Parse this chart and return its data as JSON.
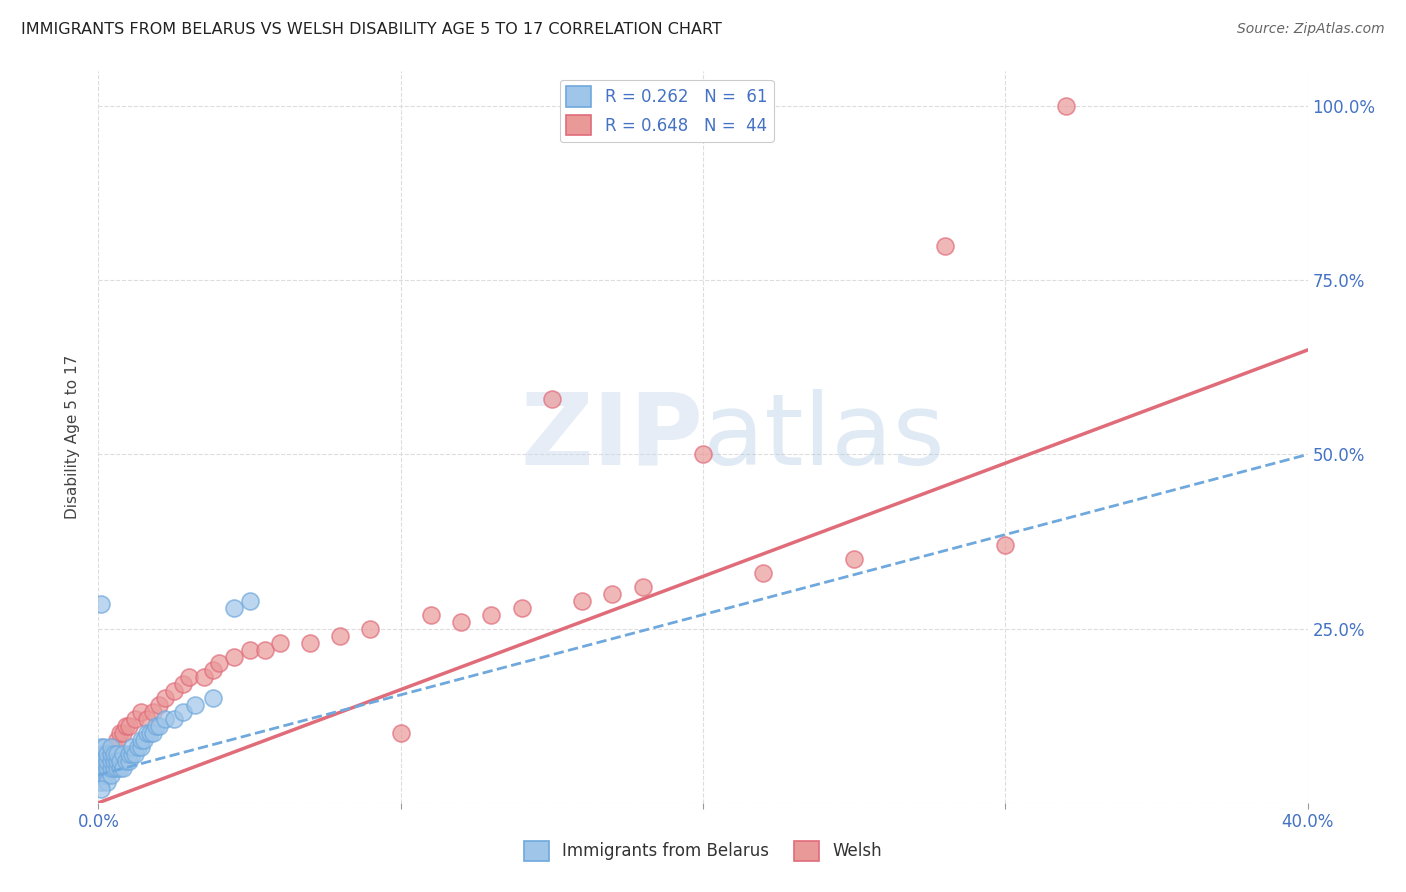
{
  "title": "IMMIGRANTS FROM BELARUS VS WELSH DISABILITY AGE 5 TO 17 CORRELATION CHART",
  "source": "Source: ZipAtlas.com",
  "ylabel": "Disability Age 5 to 17",
  "xlim": [
    0.0,
    0.4
  ],
  "ylim": [
    0.0,
    1.05
  ],
  "legend_R1": "R = 0.262",
  "legend_N1": "N =  61",
  "legend_R2": "R = 0.648",
  "legend_N2": "N =  44",
  "legend_label1": "Immigrants from Belarus",
  "legend_label2": "Welsh",
  "color_blue": "#9fc5e8",
  "color_blue_edge": "#6fa8dc",
  "color_blue_line": "#6fa8dc",
  "color_pink": "#ea9999",
  "color_pink_edge": "#e06c7a",
  "color_pink_line": "#e06c7a",
  "watermark": "ZIPatlas",
  "blue_scatter_x": [
    0.0005,
    0.001,
    0.001,
    0.001,
    0.001,
    0.001,
    0.001,
    0.001,
    0.001,
    0.002,
    0.002,
    0.002,
    0.002,
    0.002,
    0.002,
    0.002,
    0.002,
    0.003,
    0.003,
    0.003,
    0.003,
    0.003,
    0.004,
    0.004,
    0.004,
    0.004,
    0.004,
    0.005,
    0.005,
    0.005,
    0.006,
    0.006,
    0.006,
    0.007,
    0.007,
    0.008,
    0.008,
    0.009,
    0.01,
    0.01,
    0.011,
    0.011,
    0.012,
    0.013,
    0.014,
    0.014,
    0.015,
    0.016,
    0.017,
    0.018,
    0.019,
    0.02,
    0.022,
    0.025,
    0.028,
    0.032,
    0.038,
    0.045,
    0.05,
    0.001,
    0.001
  ],
  "blue_scatter_y": [
    0.04,
    0.05,
    0.06,
    0.07,
    0.08,
    0.04,
    0.05,
    0.06,
    0.03,
    0.04,
    0.05,
    0.06,
    0.07,
    0.08,
    0.04,
    0.05,
    0.06,
    0.04,
    0.05,
    0.06,
    0.07,
    0.03,
    0.04,
    0.05,
    0.06,
    0.07,
    0.08,
    0.05,
    0.06,
    0.07,
    0.05,
    0.06,
    0.07,
    0.05,
    0.06,
    0.05,
    0.07,
    0.06,
    0.06,
    0.07,
    0.07,
    0.08,
    0.07,
    0.08,
    0.08,
    0.09,
    0.09,
    0.1,
    0.1,
    0.1,
    0.11,
    0.11,
    0.12,
    0.12,
    0.13,
    0.14,
    0.15,
    0.28,
    0.29,
    0.285,
    0.02
  ],
  "pink_scatter_x": [
    0.001,
    0.002,
    0.003,
    0.004,
    0.005,
    0.006,
    0.007,
    0.008,
    0.009,
    0.01,
    0.012,
    0.014,
    0.016,
    0.018,
    0.02,
    0.022,
    0.025,
    0.028,
    0.03,
    0.035,
    0.038,
    0.04,
    0.045,
    0.05,
    0.055,
    0.06,
    0.07,
    0.08,
    0.09,
    0.1,
    0.11,
    0.12,
    0.13,
    0.14,
    0.15,
    0.16,
    0.17,
    0.18,
    0.2,
    0.22,
    0.25,
    0.28,
    0.3,
    0.32
  ],
  "pink_scatter_y": [
    0.04,
    0.06,
    0.05,
    0.07,
    0.08,
    0.09,
    0.1,
    0.1,
    0.11,
    0.11,
    0.12,
    0.13,
    0.12,
    0.13,
    0.14,
    0.15,
    0.16,
    0.17,
    0.18,
    0.18,
    0.19,
    0.2,
    0.21,
    0.22,
    0.22,
    0.23,
    0.23,
    0.24,
    0.25,
    0.1,
    0.27,
    0.26,
    0.27,
    0.28,
    0.58,
    0.29,
    0.3,
    0.31,
    0.5,
    0.33,
    0.35,
    0.8,
    0.37,
    1.0
  ],
  "blue_line_x": [
    0.0,
    0.4
  ],
  "blue_line_y": [
    0.04,
    0.5
  ],
  "pink_line_x": [
    0.0,
    0.4
  ],
  "pink_line_y": [
    0.0,
    0.65
  ]
}
